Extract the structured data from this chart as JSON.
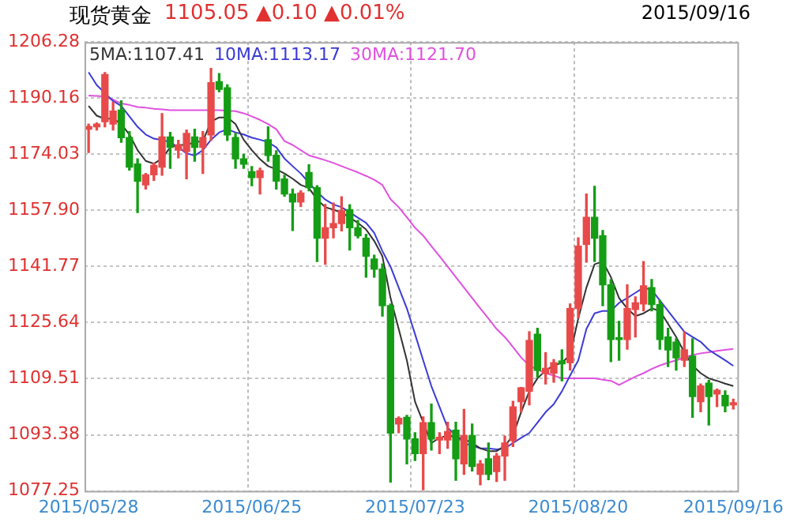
{
  "chart_data": {
    "type": "candlestick",
    "title": "现货黄金",
    "subtitle": "1105.05 ▲0.10 ▲0.01%",
    "annotations": [
      "2015/09/16"
    ],
    "categories": [
      "2015/05/28",
      null,
      null,
      null,
      null,
      null,
      null,
      null,
      null,
      null,
      null,
      null,
      null,
      null,
      null,
      null,
      null,
      null,
      null,
      null,
      "2015/06/25",
      null,
      null,
      null,
      null,
      null,
      null,
      null,
      null,
      null,
      null,
      null,
      null,
      null,
      null,
      null,
      null,
      null,
      null,
      null,
      "2015/07/23",
      null,
      null,
      null,
      null,
      null,
      null,
      null,
      null,
      null,
      null,
      null,
      null,
      null,
      null,
      null,
      null,
      null,
      null,
      null,
      "2015/08/20",
      null,
      null,
      null,
      null,
      null,
      null,
      null,
      null,
      null,
      null,
      null,
      null,
      null,
      null,
      null,
      null,
      null,
      null,
      "2015/09/16"
    ],
    "ohlc": [
      [
        1181.2,
        1182.7,
        1174.5,
        1182.0
      ],
      [
        1181.9,
        1183.0,
        1181.0,
        1182.7
      ],
      [
        1183.4,
        1197.5,
        1181.9,
        1196.9
      ],
      [
        1182.7,
        1189.0,
        1181.0,
        1186.4
      ],
      [
        1186.7,
        1189.4,
        1177.5,
        1178.8
      ],
      [
        1178.8,
        1180.5,
        1169.5,
        1170.3
      ],
      [
        1171.2,
        1172.7,
        1157.3,
        1166.3
      ],
      [
        1165.2,
        1168.5,
        1164.0,
        1168.1
      ],
      [
        1168.1,
        1171.5,
        1166.5,
        1170.8
      ],
      [
        1170.3,
        1185.7,
        1168.0,
        1179.0
      ],
      [
        1179.0,
        1180.3,
        1170.0,
        1176.0
      ],
      [
        1175.2,
        1178.0,
        1173.0,
        1176.7
      ],
      [
        1174.8,
        1181.0,
        1167.0,
        1180.0
      ],
      [
        1179.0,
        1181.2,
        1172.0,
        1176.0
      ],
      [
        1176.0,
        1180.5,
        1168.5,
        1178.8
      ],
      [
        1179.6,
        1198.7,
        1178.0,
        1194.6
      ],
      [
        1194.9,
        1197.2,
        1192.0,
        1192.7
      ],
      [
        1193.1,
        1194.0,
        1178.0,
        1179.6
      ],
      [
        1178.8,
        1180.0,
        1170.0,
        1172.7
      ],
      [
        1172.7,
        1174.0,
        1170.0,
        1171.2
      ],
      [
        1169.0,
        1170.5,
        1165.0,
        1167.3
      ],
      [
        1167.3,
        1170.0,
        1162.6,
        1169.3
      ],
      [
        1178.2,
        1181.9,
        1172.0,
        1173.7
      ],
      [
        1173.7,
        1175.0,
        1164.0,
        1166.3
      ],
      [
        1166.9,
        1168.0,
        1162.0,
        1162.6
      ],
      [
        1162.6,
        1164.0,
        1152.1,
        1160.3
      ],
      [
        1160.3,
        1163.5,
        1159.0,
        1162.9
      ],
      [
        1168.8,
        1171.0,
        1163.5,
        1164.4
      ],
      [
        1164.4,
        1165.0,
        1143.2,
        1149.9
      ],
      [
        1149.9,
        1159.6,
        1142.4,
        1152.9
      ],
      [
        1152.9,
        1160.0,
        1150.0,
        1154.1
      ],
      [
        1154.1,
        1161.8,
        1152.0,
        1157.8
      ],
      [
        1158.1,
        1159.5,
        1146.5,
        1152.9
      ],
      [
        1152.9,
        1155.0,
        1150.0,
        1150.6
      ],
      [
        1149.9,
        1151.0,
        1138.7,
        1144.7
      ],
      [
        1143.9,
        1145.0,
        1138.7,
        1141.0
      ],
      [
        1141.0,
        1142.5,
        1127.5,
        1130.5
      ],
      [
        1130.5,
        1131.0,
        1079.8,
        1093.9
      ],
      [
        1096.5,
        1098.5,
        1094.0,
        1098.1
      ],
      [
        1098.4,
        1099.0,
        1085.0,
        1092.2
      ],
      [
        1092.2,
        1094.0,
        1086.0,
        1088.0
      ],
      [
        1088.0,
        1098.5,
        1077.6,
        1096.9
      ],
      [
        1096.9,
        1102.2,
        1089.0,
        1092.2
      ],
      [
        1091.9,
        1094.0,
        1088.0,
        1092.7
      ],
      [
        1091.9,
        1097.0,
        1089.5,
        1094.3
      ],
      [
        1094.7,
        1097.0,
        1080.3,
        1086.5
      ],
      [
        1085.0,
        1100.7,
        1082.0,
        1093.2
      ],
      [
        1093.2,
        1096.5,
        1083.0,
        1084.3
      ],
      [
        1082.0,
        1086.0,
        1079.0,
        1085.0
      ],
      [
        1086.5,
        1091.0,
        1080.5,
        1082.0
      ],
      [
        1082.8,
        1088.0,
        1080.0,
        1087.3
      ],
      [
        1087.3,
        1093.0,
        1080.3,
        1091.0
      ],
      [
        1091.7,
        1103.0,
        1090.0,
        1101.4
      ],
      [
        1102.9,
        1107.0,
        1100.0,
        1106.9
      ],
      [
        1105.9,
        1123.0,
        1102.0,
        1120.5
      ],
      [
        1122.3,
        1124.0,
        1110.0,
        1111.9
      ],
      [
        1111.0,
        1117.0,
        1108.0,
        1112.5
      ],
      [
        1111.1,
        1115.0,
        1108.5,
        1114.1
      ],
      [
        1114.6,
        1117.8,
        1108.9,
        1113.8
      ],
      [
        1114.1,
        1131.0,
        1112.0,
        1129.7
      ],
      [
        1129.7,
        1150.0,
        1127.0,
        1147.6
      ],
      [
        1148.1,
        1162.6,
        1143.0,
        1155.9
      ],
      [
        1155.9,
        1164.8,
        1143.2,
        1149.9
      ],
      [
        1150.6,
        1152.1,
        1130.5,
        1136.5
      ],
      [
        1136.5,
        1138.0,
        1114.4,
        1120.8
      ],
      [
        1121.3,
        1126.0,
        1114.8,
        1120.8
      ],
      [
        1120.8,
        1136.5,
        1118.0,
        1129.7
      ],
      [
        1129.4,
        1133.0,
        1121.5,
        1131.3
      ],
      [
        1131.0,
        1143.2,
        1129.0,
        1136.2
      ],
      [
        1135.7,
        1138.0,
        1129.0,
        1130.8
      ],
      [
        1130.8,
        1132.0,
        1118.0,
        1120.8
      ],
      [
        1121.5,
        1124.0,
        1113.0,
        1117.8
      ],
      [
        1120.0,
        1121.0,
        1112.0,
        1115.5
      ],
      [
        1114.8,
        1123.0,
        1113.0,
        1117.8
      ],
      [
        1116.0,
        1121.0,
        1098.4,
        1104.4
      ],
      [
        1102.9,
        1108.0,
        1100.0,
        1107.4
      ],
      [
        1108.2,
        1109.0,
        1096.2,
        1104.4
      ],
      [
        1105.1,
        1106.5,
        1101.5,
        1106.2
      ],
      [
        1104.7,
        1106.0,
        1100.0,
        1101.7
      ],
      [
        1102.0,
        1103.6,
        1100.8,
        1102.6
      ]
    ],
    "colors": [
      "#e84a4a",
      "#e84a4a",
      "#e84a4a",
      "#e84a4a",
      "#159d15",
      "#159d15",
      "#159d15",
      "#e84a4a",
      "#e84a4a",
      "#e84a4a",
      "#159d15",
      "#e84a4a",
      "#e84a4a",
      "#159d15",
      "#e84a4a",
      "#e84a4a",
      "#159d15",
      "#159d15",
      "#159d15",
      "#159d15",
      "#159d15",
      "#e84a4a",
      "#159d15",
      "#159d15",
      "#159d15",
      "#159d15",
      "#e84a4a",
      "#159d15",
      "#159d15",
      "#e84a4a",
      "#e84a4a",
      "#e84a4a",
      "#159d15",
      "#159d15",
      "#159d15",
      "#159d15",
      "#159d15",
      "#159d15",
      "#e84a4a",
      "#159d15",
      "#159d15",
      "#e84a4a",
      "#159d15",
      "#e84a4a",
      "#e84a4a",
      "#159d15",
      "#e84a4a",
      "#159d15",
      "#e84a4a",
      "#159d15",
      "#e84a4a",
      "#e84a4a",
      "#e84a4a",
      "#e84a4a",
      "#e84a4a",
      "#159d15",
      "#e84a4a",
      "#e84a4a",
      "#159d15",
      "#e84a4a",
      "#e84a4a",
      "#e84a4a",
      "#159d15",
      "#159d15",
      "#159d15",
      "#159d15",
      "#e84a4a",
      "#e84a4a",
      "#e84a4a",
      "#159d15",
      "#159d15",
      "#159d15",
      "#159d15",
      "#e84a4a",
      "#159d15",
      "#e84a4a",
      "#159d15",
      "#e84a4a",
      "#159d15",
      "#e84a4a"
    ],
    "series": [
      {
        "type": "line",
        "name": "5MA:1107.41",
        "color": "#333333",
        "values": [
          1187.9,
          1185.1,
          1184.2,
          1184.3,
          1182.7,
          1179.7,
          1175.2,
          1172.1,
          1171.3,
          1172.8,
          1176.0,
          1176.7,
          1176.7,
          1177.5,
          1177.8,
          1183.4,
          1184.6,
          1184.6,
          1182.7,
          1178.2,
          1175.2,
          1172.6,
          1170.6,
          1169.7,
          1168.5,
          1167.0,
          1165.2,
          1164.3,
          1161.0,
          1158.8,
          1158.1,
          1157.3,
          1155.8,
          1154.3,
          1152.4,
          1149.1,
          1144.7,
          1132.7,
          1123.8,
          1114.8,
          1102.9,
          null,
          1091.0,
          1092.5,
          1093.2,
          null,
          1092.2,
          1091.0,
          1089.5,
          1088.7,
          1088.7,
          1090.2,
          1093.2,
          1099.9,
          1105.9,
          1109.6,
          1111.9,
          1113.3,
          1114.1,
          1116.3,
          1126.8,
          1135.7,
          1142.4,
          1143.2,
          1138.7,
          1132.7,
          1129.7,
          1127.5,
          1128.3,
          1129.7,
          1129.0,
          1125.3,
          1121.5,
          1117.1,
          1113.3,
          1111.1,
          1109.6,
          1108.9,
          1108.1,
          1107.4
        ]
      },
      {
        "type": "line",
        "name": "10MA:1113.17",
        "color": "#3b3bd6",
        "values": [
          1197.6,
          1193.9,
          1191.6,
          1189.3,
          1187.9,
          1184.9,
          1181.9,
          1179.7,
          1178.5,
          1178.1,
          1177.5,
          1176.0,
          1174.3,
          1173.6,
          1175.2,
          1178.2,
          1180.3,
          1181.2,
          1180.3,
          1179.7,
          1178.8,
          1178.2,
          1177.5,
          1176.0,
          1172.8,
          1170.6,
          1168.5,
          1165.8,
          1163.2,
          1161.0,
          1159.6,
          1158.8,
          1157.3,
          1155.8,
          1154.3,
          1151.4,
          1146.2,
          1141.7,
          1135.7,
          1129.7,
          1122.3,
          1114.8,
          1107.4,
          1101.4,
          1095.4,
          1093.2,
          1091.0,
          1090.2,
          1089.5,
          1089.5,
          1089.2,
          1089.5,
          1091.0,
          1092.5,
          1093.9,
          1096.9,
          1099.9,
          1102.2,
          1105.9,
          1110.4,
          1114.8,
          1123.8,
          1128.3,
          1129.0,
          1129.0,
          1131.3,
          1132.7,
          1134.2,
          1135.7,
          1135.0,
          1132.0,
          1129.0,
          1126.0,
          1123.0,
          1121.5,
          1120.1,
          1117.8,
          1116.3,
          1114.8,
          1113.2
        ]
      },
      {
        "type": "line",
        "name": "30MA:1121.70",
        "color": "#e050e0",
        "values": [
          1190.9,
          1190.8,
          1190.6,
          1189.7,
          1188.6,
          1188.2,
          1187.6,
          1187.4,
          1187.1,
          1186.9,
          1186.7,
          1186.7,
          1186.7,
          1186.7,
          1186.7,
          1186.7,
          1186.7,
          1186.5,
          1186.4,
          1185.8,
          1184.9,
          1183.9,
          1182.7,
          1181.2,
          1177.8,
          1176.7,
          1175.2,
          1173.7,
          1173.0,
          1172.3,
          1171.5,
          1170.6,
          1169.7,
          1168.8,
          1167.8,
          1166.7,
          1165.2,
          1161.1,
          1158.8,
          1155.9,
          1152.9,
          1150.6,
          1147.6,
          1144.7,
          1141.7,
          1138.7,
          1135.7,
          1132.7,
          1129.7,
          1126.8,
          1123.8,
          1121.5,
          1118.6,
          1115.6,
          1113.3,
          1112.1,
          1111.1,
          1110.4,
          1109.6,
          1109.6,
          1109.6,
          1109.6,
          1109.6,
          1109.2,
          1108.9,
          1107.7,
          1108.9,
          1110.1,
          1111.1,
          1112.3,
          1113.3,
          1114.1,
          1114.8,
          1115.6,
          1116.3,
          1116.8,
          1117.1,
          1117.5,
          1117.8,
          1118.1
        ]
      }
    ],
    "ylim": [
      1077.25,
      1206.28
    ],
    "yticks": [
      1077.25,
      1093.38,
      1109.51,
      1125.64,
      1141.77,
      {
        "value": 1157.9,
        "label": "1157.90"
      },
      1174.03,
      1190.16,
      1206.28
    ],
    "grid": true,
    "legend": "top left",
    "marker": "none",
    "line_style": "solid"
  }
}
